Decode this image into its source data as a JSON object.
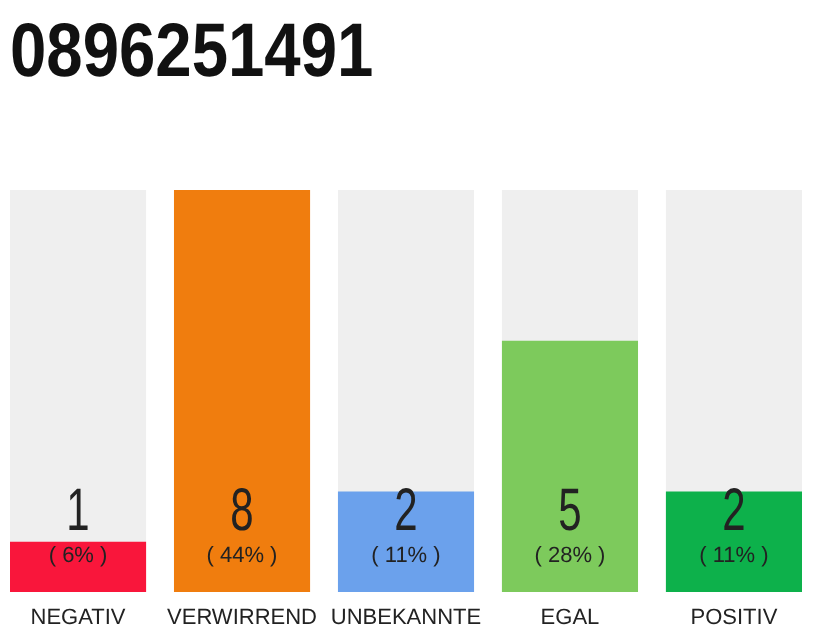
{
  "chart_data": {
    "type": "bar",
    "title": "0896251491",
    "categories": [
      "NEGATIV",
      "VERWIRREND",
      "UNBEKANNTE",
      "EGAL",
      "POSITIV"
    ],
    "values": [
      1,
      8,
      2,
      5,
      2
    ],
    "colors": [
      "#f9163b",
      "#f07d0e",
      "#6ba1ec",
      "#7dca5c",
      "#0db14b"
    ],
    "data_labels": true,
    "annotations": [
      "( 6% )",
      "( 44% )",
      "( 11% )",
      "( 28% )",
      "( 11% )"
    ]
  }
}
